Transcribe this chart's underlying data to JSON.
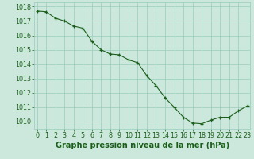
{
  "x": [
    0,
    1,
    2,
    3,
    4,
    5,
    6,
    7,
    8,
    9,
    10,
    11,
    12,
    13,
    14,
    15,
    16,
    17,
    18,
    19,
    20,
    21,
    22,
    23
  ],
  "y": [
    1017.7,
    1017.65,
    1017.2,
    1017.0,
    1016.65,
    1016.5,
    1015.6,
    1015.0,
    1014.7,
    1014.65,
    1014.3,
    1014.1,
    1013.2,
    1012.5,
    1011.65,
    1011.0,
    1010.3,
    1009.9,
    1009.85,
    1010.1,
    1010.3,
    1010.3,
    1010.75,
    1011.1
  ],
  "ylim": [
    1009.5,
    1018.3
  ],
  "xlim": [
    -0.3,
    23.3
  ],
  "yticks": [
    1010,
    1011,
    1012,
    1013,
    1014,
    1015,
    1016,
    1017,
    1018
  ],
  "xticks": [
    0,
    1,
    2,
    3,
    4,
    5,
    6,
    7,
    8,
    9,
    10,
    11,
    12,
    13,
    14,
    15,
    16,
    17,
    18,
    19,
    20,
    21,
    22,
    23
  ],
  "xlabel": "Graphe pression niveau de la mer (hPa)",
  "line_color": "#1a5e1a",
  "marker_color": "#1a5e1a",
  "background_color": "#cce8dd",
  "grid_color": "#99ccbb",
  "text_color": "#1a5e1a",
  "xlabel_fontsize": 7.0,
  "tick_fontsize": 5.8
}
